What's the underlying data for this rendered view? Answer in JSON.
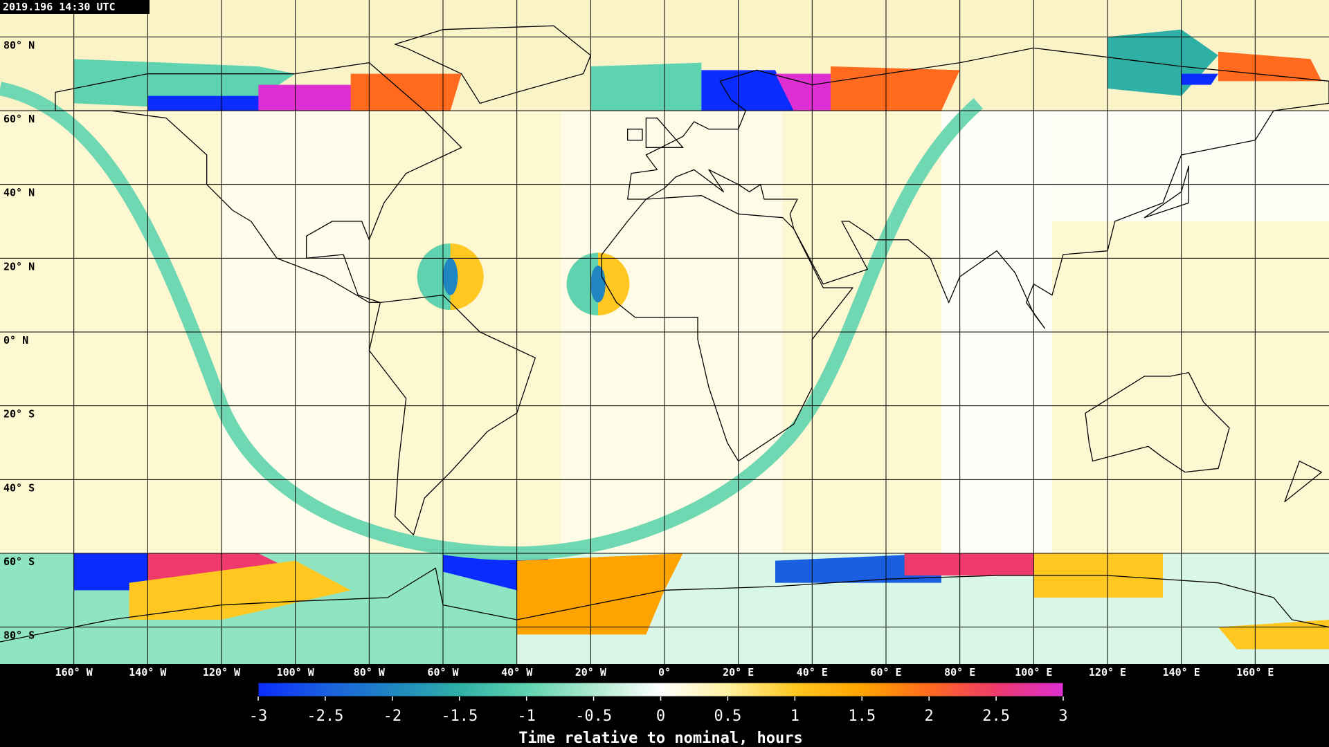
{
  "timestamp": "2019.196 14:30 UTC",
  "map": {
    "xlim": [
      -180,
      180
    ],
    "ylim": [
      -90,
      90
    ],
    "xticks": [
      {
        "value": -160,
        "label": "160° W"
      },
      {
        "value": -140,
        "label": "140° W"
      },
      {
        "value": -120,
        "label": "120° W"
      },
      {
        "value": -100,
        "label": "100° W"
      },
      {
        "value": -80,
        "label": "80° W"
      },
      {
        "value": -60,
        "label": "60° W"
      },
      {
        "value": -40,
        "label": "40° W"
      },
      {
        "value": -20,
        "label": "20° W"
      },
      {
        "value": 0,
        "label": "0°"
      },
      {
        "value": 20,
        "label": "20° E"
      },
      {
        "value": 40,
        "label": "40° E"
      },
      {
        "value": 60,
        "label": "60° E"
      },
      {
        "value": 80,
        "label": "80° E"
      },
      {
        "value": 100,
        "label": "100° E"
      },
      {
        "value": 120,
        "label": "120° E"
      },
      {
        "value": 140,
        "label": "140° E"
      },
      {
        "value": 160,
        "label": "160° E"
      }
    ],
    "yticks": [
      {
        "value": 80,
        "label": "80° N"
      },
      {
        "value": 60,
        "label": "60° N"
      },
      {
        "value": 40,
        "label": "40° N"
      },
      {
        "value": 20,
        "label": "20° N"
      },
      {
        "value": 0,
        "label": "0° N"
      },
      {
        "value": -20,
        "label": "20° S"
      },
      {
        "value": -40,
        "label": "40° S"
      },
      {
        "value": -60,
        "label": "60° S"
      },
      {
        "value": -80,
        "label": "80° S"
      }
    ]
  },
  "colorbar": {
    "label": "Time relative to nominal, hours",
    "lim": [
      -3,
      3
    ],
    "ticks": [
      -3,
      -2.5,
      -2,
      -1.5,
      -1,
      -0.5,
      0,
      0.5,
      1,
      1.5,
      2,
      2.5,
      3
    ],
    "colors": [
      "#0a2cff",
      "#1a5fe0",
      "#1f86c2",
      "#2fb0a6",
      "#5fd3b0",
      "#aeeacf",
      "#ffffff",
      "#fff1a0",
      "#ffc720",
      "#ffa300",
      "#ff6a1e",
      "#ee3a6c",
      "#dd2fd2"
    ]
  }
}
